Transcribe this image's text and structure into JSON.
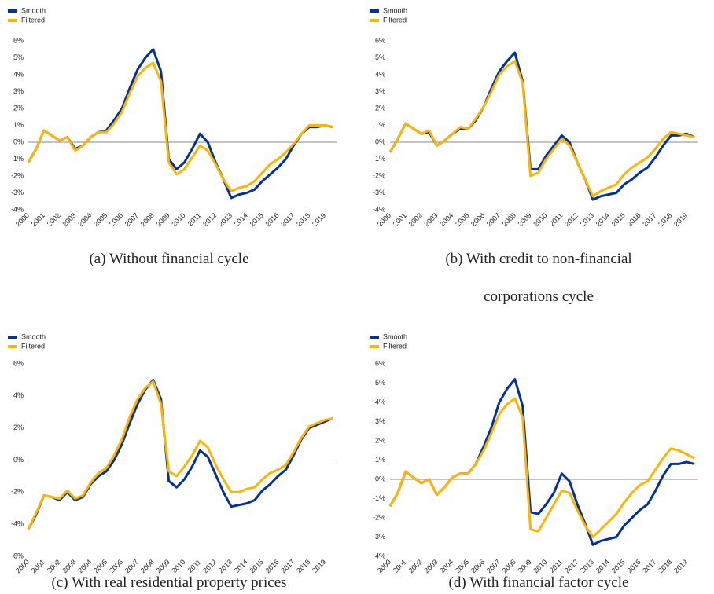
{
  "chart_data": [
    {
      "type": "line",
      "caption": "(a) Without financial cycle",
      "x": [
        2000,
        2000.5,
        2001,
        2001.5,
        2002,
        2002.5,
        2003,
        2003.5,
        2004,
        2004.5,
        2005,
        2005.5,
        2006,
        2006.5,
        2007,
        2007.5,
        2008,
        2008.5,
        2009,
        2009.5,
        2010,
        2010.5,
        2011,
        2011.5,
        2012,
        2012.5,
        2013,
        2013.5,
        2014,
        2014.5,
        2015,
        2015.5,
        2016,
        2016.5,
        2017,
        2017.5,
        2018,
        2018.5,
        2019,
        2019.5
      ],
      "xlim": [
        2000,
        2019.75
      ],
      "xticks": [
        2000,
        2001,
        2002,
        2003,
        2004,
        2005,
        2006,
        2007,
        2008,
        2009,
        2010,
        2011,
        2012,
        2013,
        2014,
        2015,
        2016,
        2017,
        2018,
        2019
      ],
      "ylim": [
        -4,
        6
      ],
      "yticks": [
        {
          "value": -4,
          "label": "-4%"
        },
        {
          "value": -3,
          "label": "-3%"
        },
        {
          "value": -2,
          "label": "-2%"
        },
        {
          "value": -1,
          "label": "-1%"
        },
        {
          "value": 0,
          "label": "0%"
        },
        {
          "value": 1,
          "label": "1%"
        },
        {
          "value": 2,
          "label": "2%"
        },
        {
          "value": 3,
          "label": "3%"
        },
        {
          "value": 4,
          "label": "4%"
        },
        {
          "value": 5,
          "label": "5%"
        },
        {
          "value": 6,
          "label": "6%"
        }
      ],
      "series": [
        {
          "name": "Smooth",
          "color": "#003299",
          "values": [
            -1.2,
            -0.4,
            0.7,
            0.4,
            0.1,
            0.3,
            -0.4,
            -0.2,
            0.3,
            0.6,
            0.7,
            1.3,
            2.0,
            3.2,
            4.3,
            5.0,
            5.5,
            4.2,
            -1.0,
            -1.6,
            -1.2,
            -0.4,
            0.5,
            0.0,
            -1.2,
            -2.2,
            -3.3,
            -3.1,
            -3.0,
            -2.8,
            -2.3,
            -1.9,
            -1.5,
            -1.0,
            -0.2,
            0.5,
            0.9,
            0.9,
            1.0,
            0.9
          ]
        },
        {
          "name": "Filtered",
          "color": "#FFB400",
          "values": [
            -1.2,
            -0.4,
            0.7,
            0.4,
            0.1,
            0.3,
            -0.5,
            -0.2,
            0.3,
            0.6,
            0.6,
            1.1,
            1.8,
            2.9,
            3.9,
            4.4,
            4.7,
            3.6,
            -1.2,
            -1.9,
            -1.6,
            -0.9,
            -0.2,
            -0.5,
            -1.3,
            -2.2,
            -2.9,
            -2.7,
            -2.6,
            -2.3,
            -1.8,
            -1.3,
            -1.0,
            -0.6,
            -0.1,
            0.5,
            1.0,
            1.0,
            1.0,
            0.9
          ]
        }
      ]
    },
    {
      "type": "line",
      "caption": "(b) With credit to non-financial corporations cycle",
      "x": [
        2000,
        2000.5,
        2001,
        2001.5,
        2002,
        2002.5,
        2003,
        2003.5,
        2004,
        2004.5,
        2005,
        2005.5,
        2006,
        2006.5,
        2007,
        2007.5,
        2008,
        2008.5,
        2009,
        2009.5,
        2010,
        2010.5,
        2011,
        2011.5,
        2012,
        2012.5,
        2013,
        2013.5,
        2014,
        2014.5,
        2015,
        2015.5,
        2016,
        2016.5,
        2017,
        2017.5,
        2018,
        2018.5,
        2019,
        2019.5
      ],
      "xlim": [
        2000,
        2019.75
      ],
      "xticks": [
        2000,
        2001,
        2002,
        2003,
        2004,
        2005,
        2006,
        2007,
        2008,
        2009,
        2010,
        2011,
        2012,
        2013,
        2014,
        2015,
        2016,
        2017,
        2018,
        2019
      ],
      "ylim": [
        -4,
        6
      ],
      "yticks": [
        {
          "value": -4,
          "label": "-4%"
        },
        {
          "value": -3,
          "label": "-3%"
        },
        {
          "value": -2,
          "label": "-2%"
        },
        {
          "value": -1,
          "label": "-1%"
        },
        {
          "value": 0,
          "label": "0%"
        },
        {
          "value": 1,
          "label": "1%"
        },
        {
          "value": 2,
          "label": "2%"
        },
        {
          "value": 3,
          "label": "3%"
        },
        {
          "value": 4,
          "label": "4%"
        },
        {
          "value": 5,
          "label": "5%"
        },
        {
          "value": 6,
          "label": "6%"
        }
      ],
      "series": [
        {
          "name": "Smooth",
          "color": "#003299",
          "values": [
            -0.6,
            0.2,
            1.1,
            0.8,
            0.5,
            0.6,
            -0.2,
            0.1,
            0.5,
            0.8,
            0.8,
            1.3,
            2.1,
            3.2,
            4.2,
            4.8,
            5.3,
            3.6,
            -1.6,
            -1.6,
            -0.8,
            -0.2,
            0.4,
            0.0,
            -1.2,
            -2.2,
            -3.4,
            -3.2,
            -3.1,
            -3.0,
            -2.5,
            -2.2,
            -1.8,
            -1.5,
            -0.9,
            -0.2,
            0.4,
            0.4,
            0.5,
            0.3
          ]
        },
        {
          "name": "Filtered",
          "color": "#FFB400",
          "values": [
            -0.6,
            0.2,
            1.1,
            0.8,
            0.5,
            0.7,
            -0.2,
            0.1,
            0.5,
            0.9,
            0.8,
            1.4,
            2.1,
            3.0,
            4.0,
            4.5,
            4.8,
            3.5,
            -2.0,
            -1.8,
            -1.0,
            -0.4,
            0.2,
            -0.2,
            -1.2,
            -2.2,
            -3.2,
            -2.9,
            -2.7,
            -2.5,
            -1.9,
            -1.5,
            -1.2,
            -0.9,
            -0.4,
            0.2,
            0.6,
            0.5,
            0.4,
            0.3
          ]
        }
      ]
    },
    {
      "type": "line",
      "caption": "(c) With real residential property prices",
      "x": [
        2000,
        2000.5,
        2001,
        2001.5,
        2002,
        2002.5,
        2003,
        2003.5,
        2004,
        2004.5,
        2005,
        2005.5,
        2006,
        2006.5,
        2007,
        2007.5,
        2008,
        2008.5,
        2009,
        2009.5,
        2010,
        2010.5,
        2011,
        2011.5,
        2012,
        2012.5,
        2013,
        2013.5,
        2014,
        2014.5,
        2015,
        2015.5,
        2016,
        2016.5,
        2017,
        2017.5,
        2018,
        2018.5,
        2019,
        2019.5
      ],
      "xlim": [
        2000,
        2019.75
      ],
      "xticks": [
        2000,
        2001,
        2002,
        2003,
        2004,
        2005,
        2006,
        2007,
        2008,
        2009,
        2010,
        2011,
        2012,
        2013,
        2014,
        2015,
        2016,
        2017,
        2018,
        2019
      ],
      "ylim": [
        -6,
        6
      ],
      "yticks": [
        {
          "value": -6,
          "label": "-6%"
        },
        {
          "value": -4,
          "label": "-4%"
        },
        {
          "value": -2,
          "label": "-2%"
        },
        {
          "value": 0,
          "label": "0%"
        },
        {
          "value": 2,
          "label": "2%"
        },
        {
          "value": 4,
          "label": "4%"
        },
        {
          "value": 6,
          "label": "6%"
        }
      ],
      "series": [
        {
          "name": "Smooth",
          "color": "#003299",
          "values": [
            -4.3,
            -3.4,
            -2.2,
            -2.3,
            -2.5,
            -2.0,
            -2.5,
            -2.3,
            -1.5,
            -1.0,
            -0.7,
            0.0,
            1.0,
            2.3,
            3.5,
            4.4,
            5.0,
            3.8,
            -1.3,
            -1.7,
            -1.2,
            -0.4,
            0.6,
            0.2,
            -0.9,
            -2.0,
            -2.9,
            -2.8,
            -2.7,
            -2.5,
            -1.9,
            -1.5,
            -1.0,
            -0.6,
            0.3,
            1.3,
            2.0,
            2.2,
            2.4,
            2.6
          ]
        },
        {
          "name": "Filtered",
          "color": "#FFB400",
          "values": [
            -4.3,
            -3.3,
            -2.2,
            -2.3,
            -2.4,
            -1.9,
            -2.4,
            -2.2,
            -1.4,
            -0.8,
            -0.5,
            0.3,
            1.3,
            2.7,
            3.8,
            4.5,
            4.9,
            3.5,
            -0.7,
            -1.0,
            -0.4,
            0.3,
            1.2,
            0.8,
            -0.3,
            -1.2,
            -2.0,
            -2.0,
            -1.8,
            -1.7,
            -1.2,
            -0.8,
            -0.6,
            -0.3,
            0.5,
            1.4,
            2.1,
            2.3,
            2.5,
            2.6
          ]
        }
      ]
    },
    {
      "type": "line",
      "caption": "(d) With financial factor cycle",
      "x": [
        2000,
        2000.5,
        2001,
        2001.5,
        2002,
        2002.5,
        2003,
        2003.5,
        2004,
        2004.5,
        2005,
        2005.5,
        2006,
        2006.5,
        2007,
        2007.5,
        2008,
        2008.5,
        2009,
        2009.5,
        2010,
        2010.5,
        2011,
        2011.5,
        2012,
        2012.5,
        2013,
        2013.5,
        2014,
        2014.5,
        2015,
        2015.5,
        2016,
        2016.5,
        2017,
        2017.5,
        2018,
        2018.5,
        2019,
        2019.5
      ],
      "xlim": [
        2000,
        2019.75
      ],
      "xticks": [
        2000,
        2001,
        2002,
        2003,
        2004,
        2005,
        2006,
        2007,
        2008,
        2009,
        2010,
        2011,
        2012,
        2013,
        2014,
        2015,
        2016,
        2017,
        2018,
        2019
      ],
      "ylim": [
        -4,
        6
      ],
      "yticks": [
        {
          "value": -4,
          "label": "-4%"
        },
        {
          "value": -3,
          "label": "-3%"
        },
        {
          "value": -2,
          "label": "-2%"
        },
        {
          "value": -1,
          "label": "-1%"
        },
        {
          "value": 0,
          "label": "0%"
        },
        {
          "value": 1,
          "label": "1%"
        },
        {
          "value": 2,
          "label": "2%"
        },
        {
          "value": 3,
          "label": "3%"
        },
        {
          "value": 4,
          "label": "4%"
        },
        {
          "value": 5,
          "label": "5%"
        },
        {
          "value": 6,
          "label": "6%"
        }
      ],
      "series": [
        {
          "name": "Smooth",
          "color": "#003299",
          "values": [
            -1.4,
            -0.7,
            0.4,
            0.1,
            -0.2,
            0.0,
            -0.8,
            -0.4,
            0.1,
            0.3,
            0.3,
            0.8,
            1.7,
            2.7,
            4.0,
            4.7,
            5.2,
            3.8,
            -1.7,
            -1.8,
            -1.3,
            -0.7,
            0.3,
            -0.1,
            -1.3,
            -2.3,
            -3.4,
            -3.2,
            -3.1,
            -3.0,
            -2.4,
            -2.0,
            -1.6,
            -1.3,
            -0.6,
            0.2,
            0.8,
            0.8,
            0.9,
            0.8
          ]
        },
        {
          "name": "Filtered",
          "color": "#FFB400",
          "values": [
            -1.4,
            -0.7,
            0.4,
            0.1,
            -0.2,
            0.0,
            -0.8,
            -0.4,
            0.1,
            0.3,
            0.3,
            0.8,
            1.5,
            2.4,
            3.4,
            3.9,
            4.2,
            3.2,
            -2.6,
            -2.7,
            -2.0,
            -1.3,
            -0.6,
            -0.7,
            -1.6,
            -2.4,
            -3.0,
            -2.6,
            -2.2,
            -1.8,
            -1.2,
            -0.7,
            -0.3,
            -0.1,
            0.5,
            1.1,
            1.6,
            1.5,
            1.3,
            1.1
          ]
        }
      ]
    }
  ]
}
